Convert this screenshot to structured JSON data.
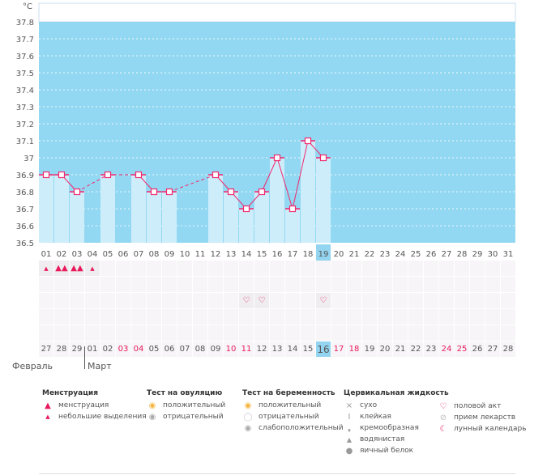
{
  "chart_data": {
    "type": "bar",
    "unit_label": "°C",
    "ylim": [
      36.5,
      37.8
    ],
    "yticks": [
      "36.5",
      "36.6",
      "36.7",
      "36.8",
      "36.9",
      "37",
      "37.1",
      "37.2",
      "37.3",
      "37.4",
      "37.5",
      "37.6",
      "37.7",
      "37.8"
    ],
    "cycle_days": [
      "01",
      "02",
      "03",
      "04",
      "05",
      "06",
      "07",
      "08",
      "09",
      "10",
      "11",
      "12",
      "13",
      "14",
      "15",
      "16",
      "17",
      "18",
      "19",
      "20",
      "21",
      "22",
      "23",
      "24",
      "25",
      "26",
      "27",
      "28",
      "29",
      "30",
      "31"
    ],
    "temperatures": [
      36.9,
      36.9,
      36.8,
      null,
      36.9,
      null,
      36.9,
      36.8,
      36.8,
      null,
      null,
      36.9,
      36.8,
      36.7,
      36.8,
      37.0,
      36.7,
      37.1,
      37.0,
      null,
      null,
      null,
      null,
      null,
      null,
      null,
      null,
      null,
      null,
      null,
      null
    ],
    "current_day_index": 18,
    "colors": {
      "background": "#93d8f2",
      "bar": "#cdedfb",
      "line": "#f0286e"
    }
  },
  "calendar": {
    "dates": [
      "27",
      "28",
      "29",
      "01",
      "02",
      "03",
      "04",
      "05",
      "06",
      "07",
      "08",
      "09",
      "10",
      "11",
      "12",
      "13",
      "14",
      "15",
      "16",
      "17",
      "18",
      "19",
      "20",
      "21",
      "22",
      "23",
      "24",
      "25",
      "26",
      "27",
      "28"
    ],
    "weekend_indices": [
      5,
      6,
      12,
      13,
      19,
      20,
      26,
      27
    ],
    "today_index": 18,
    "months": [
      "Февраль",
      "Март"
    ],
    "menstruation": [
      "light",
      "heavy",
      "heavy",
      "light"
    ],
    "intercourse_indices": [
      13,
      14,
      18
    ]
  },
  "legend": {
    "menstruation": {
      "title": "Менструация",
      "items": [
        "менструация",
        "небольшие выделения"
      ]
    },
    "ovulation": {
      "title": "Тест на овуляцию",
      "items": [
        "положительный",
        "отрицательный"
      ]
    },
    "pregnancy": {
      "title": "Тест на беременность",
      "items": [
        "положительный",
        "отрицательный",
        "слабоположительный"
      ]
    },
    "cervical": {
      "title": "Цервикальная жидкость",
      "items": [
        "сухо",
        "клейкая",
        "кремообразная",
        "водянистая",
        "яичный белок"
      ]
    },
    "other": {
      "items": [
        "половой акт",
        "прием лекарств",
        "лунный календарь"
      ]
    }
  }
}
